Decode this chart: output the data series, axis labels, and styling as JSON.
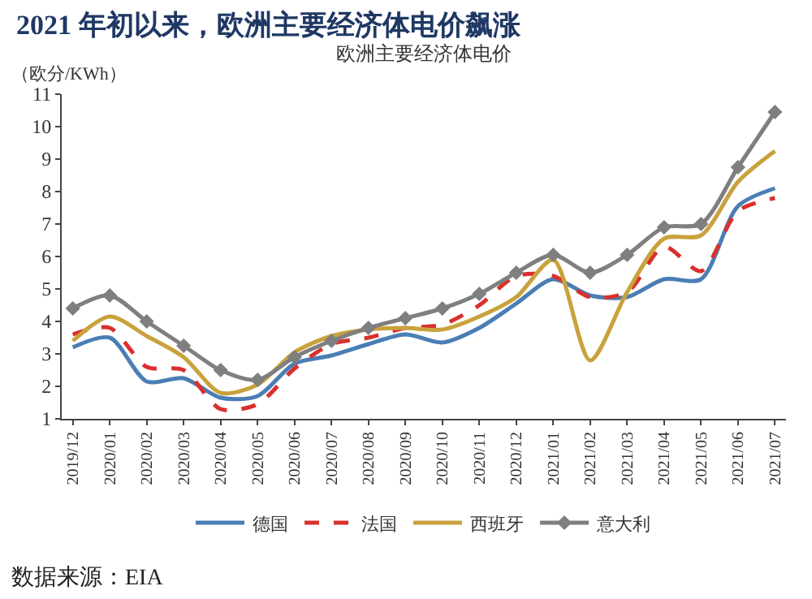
{
  "chart_data": {
    "type": "line",
    "title": "2021 年初以来，欧洲主要经济体电价飙涨",
    "subtitle": "欧洲主要经济体电价",
    "ylabel": "（欧分/KWh）",
    "categories": [
      "2019/12",
      "2020/01",
      "2020/02",
      "2020/03",
      "2020/04",
      "2020/05",
      "2020/06",
      "2020/07",
      "2020/08",
      "2020/09",
      "2020/10",
      "2020/11",
      "2020/12",
      "2021/01",
      "2021/02",
      "2021/03",
      "2021/04",
      "2021/05",
      "2021/06",
      "2021/07"
    ],
    "series": [
      {
        "name": "德国",
        "color": "#4a7eb5",
        "line_style": "solid",
        "marker": "none",
        "values": [
          3.2,
          3.5,
          2.15,
          2.25,
          1.65,
          1.7,
          2.7,
          2.95,
          3.3,
          3.6,
          3.35,
          3.8,
          4.55,
          5.3,
          4.8,
          4.75,
          5.3,
          5.3,
          7.55,
          8.1
        ]
      },
      {
        "name": "法国",
        "color": "#d9302c",
        "line_style": "dashed",
        "marker": "none",
        "values": [
          3.6,
          3.8,
          2.6,
          2.5,
          1.3,
          1.45,
          2.55,
          3.3,
          3.5,
          3.8,
          3.9,
          4.5,
          5.4,
          5.4,
          4.75,
          4.9,
          6.3,
          5.55,
          7.4,
          7.8
        ]
      },
      {
        "name": "西班牙",
        "color": "#c9a23c",
        "line_style": "solid",
        "marker": "none",
        "values": [
          3.4,
          4.15,
          3.55,
          2.9,
          1.8,
          2.05,
          3.05,
          3.55,
          3.75,
          3.8,
          3.75,
          4.15,
          4.75,
          5.9,
          2.8,
          4.9,
          6.55,
          6.65,
          8.3,
          9.25
        ]
      },
      {
        "name": "意大利",
        "color": "#7f7f7f",
        "line_style": "solid",
        "marker": "diamond",
        "values": [
          4.4,
          4.8,
          4.0,
          3.25,
          2.5,
          2.2,
          2.9,
          3.4,
          3.8,
          4.1,
          4.4,
          4.85,
          5.5,
          6.05,
          5.5,
          6.05,
          6.9,
          7.0,
          8.75,
          10.45
        ]
      }
    ],
    "ylim": [
      1,
      11
    ],
    "yticks": [
      1,
      2,
      3,
      4,
      5,
      6,
      7,
      8,
      9,
      10,
      11
    ],
    "grid": false,
    "legend": "bottom",
    "annotations": [
      "数据来源：EIA"
    ]
  }
}
